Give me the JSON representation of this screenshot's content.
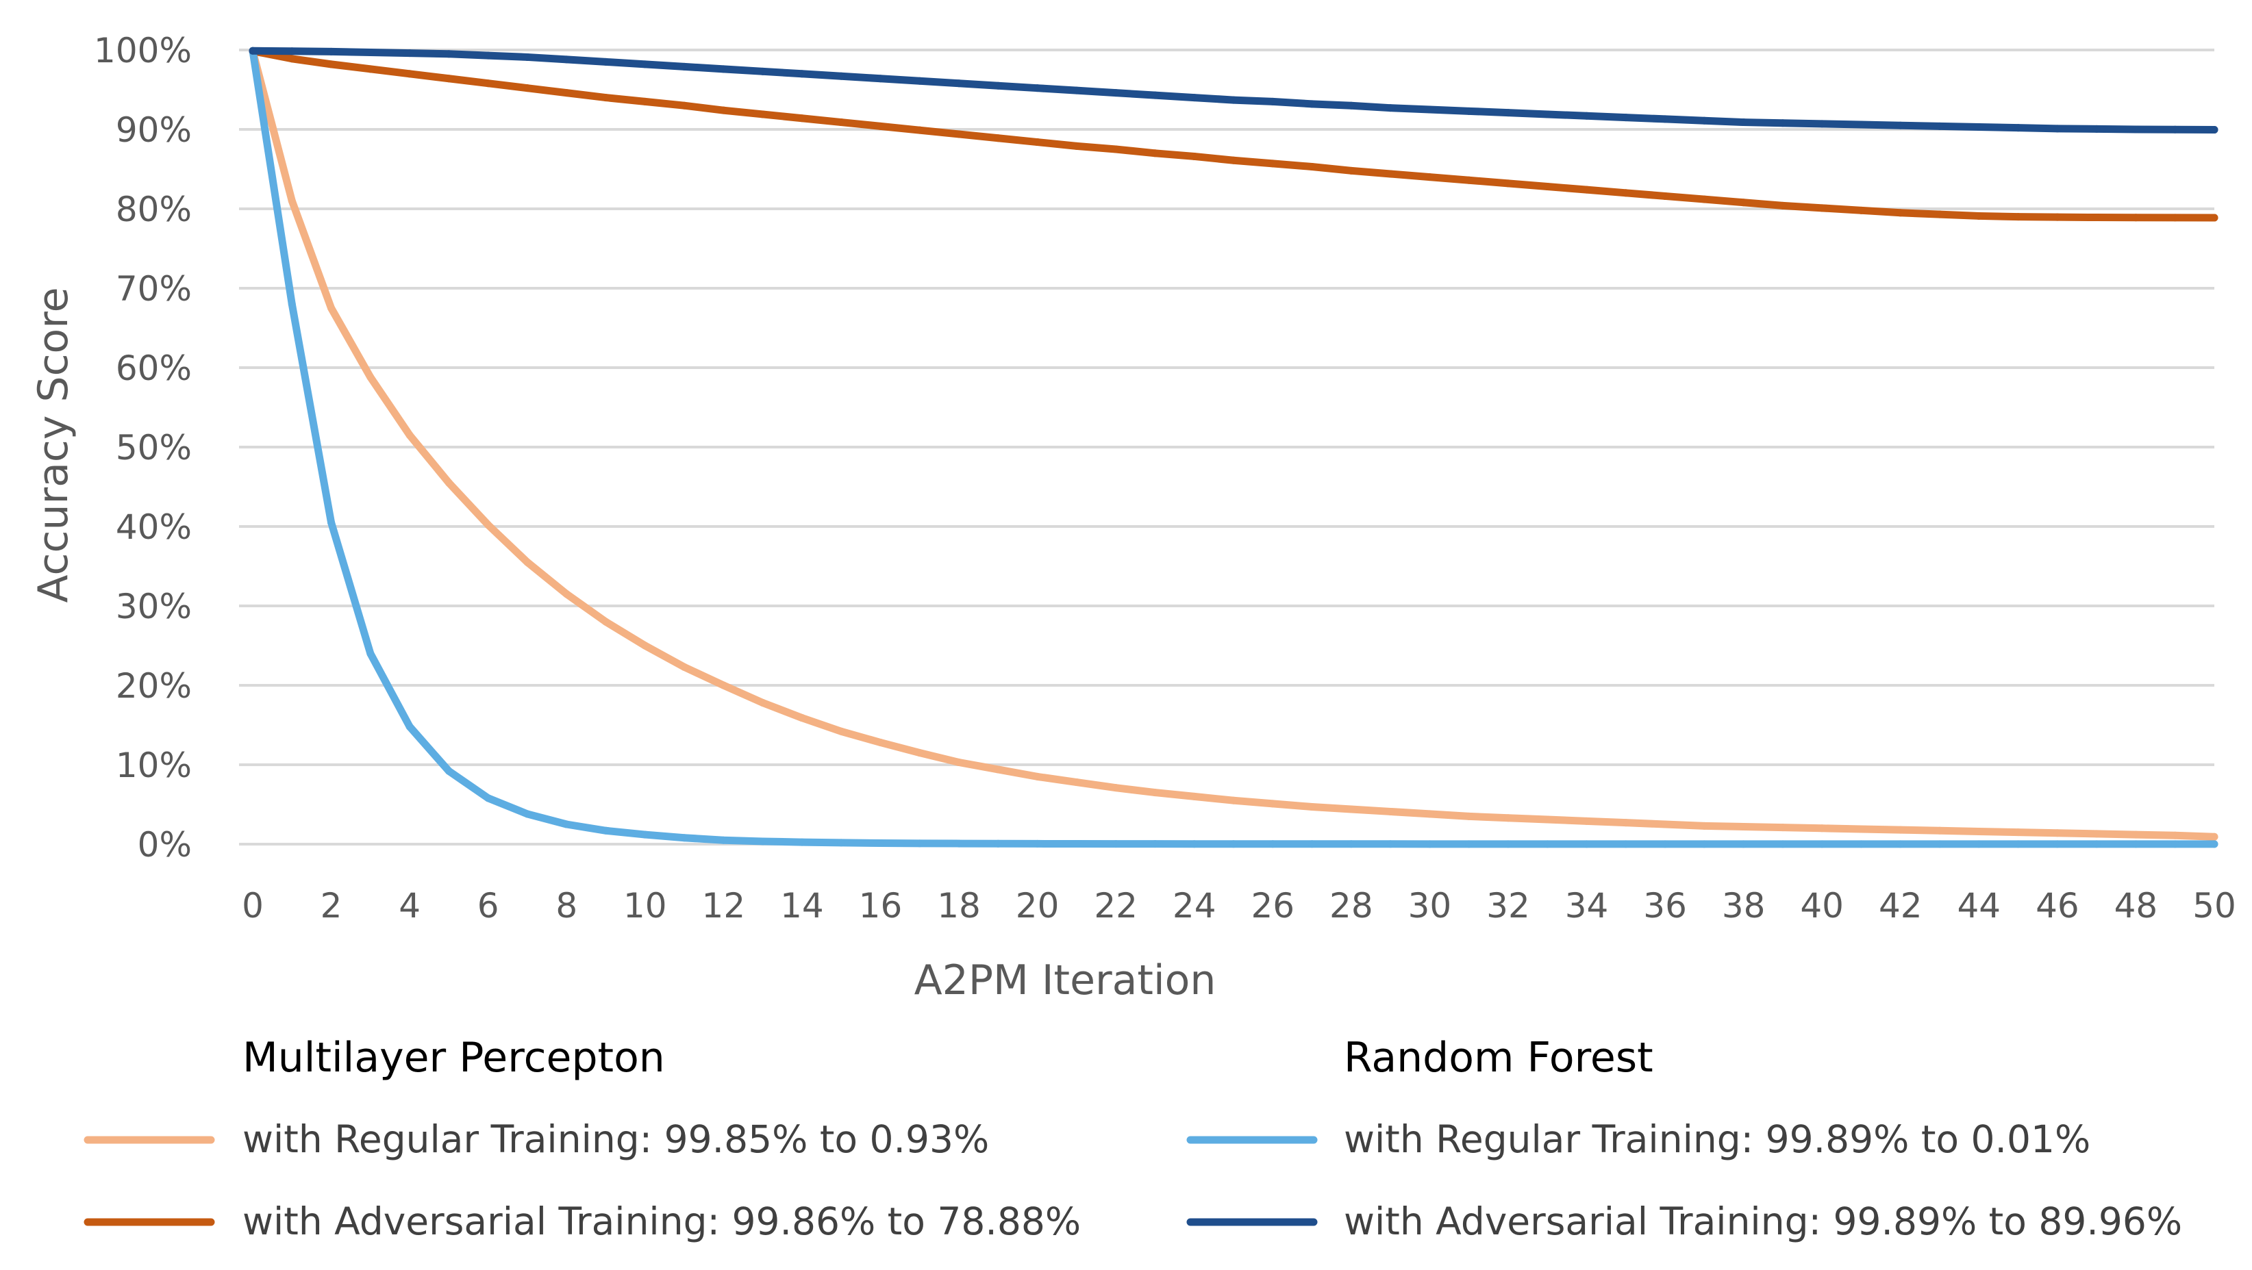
{
  "chart_data": {
    "type": "line",
    "title": "",
    "xlabel": "A2PM Iteration",
    "ylabel": "Accuracy Score",
    "xlim": [
      0,
      50
    ],
    "ylim": [
      0,
      100
    ],
    "grid": true,
    "x_ticks": [
      "0",
      "2",
      "4",
      "6",
      "8",
      "10",
      "12",
      "14",
      "16",
      "18",
      "20",
      "22",
      "24",
      "26",
      "28",
      "30",
      "32",
      "34",
      "36",
      "38",
      "40",
      "42",
      "44",
      "46",
      "48",
      "50"
    ],
    "y_ticks": [
      "0%",
      "10%",
      "20%",
      "30%",
      "40%",
      "50%",
      "60%",
      "70%",
      "80%",
      "90%",
      "100%"
    ],
    "x": [
      0,
      1,
      2,
      3,
      4,
      5,
      6,
      7,
      8,
      9,
      10,
      11,
      12,
      13,
      14,
      15,
      16,
      17,
      18,
      19,
      20,
      21,
      22,
      23,
      24,
      25,
      26,
      27,
      28,
      29,
      30,
      31,
      32,
      33,
      34,
      35,
      36,
      37,
      38,
      39,
      40,
      41,
      42,
      43,
      44,
      45,
      46,
      47,
      48,
      49,
      50
    ],
    "legend_groups": [
      {
        "title": "Multilayer Percepton",
        "entries": [
          {
            "series": 0,
            "label": "with Regular Training:  99.85% to 0.93%"
          },
          {
            "series": 1,
            "label": "with Adversarial Training:  99.86% to 78.88%"
          }
        ]
      },
      {
        "title": "Random Forest",
        "entries": [
          {
            "series": 2,
            "label": "with Regular Training:  99.89% to 0.01%"
          },
          {
            "series": 3,
            "label": "with Adversarial Training:  99.89% to 89.96%"
          }
        ]
      }
    ],
    "series": [
      {
        "name": "Multilayer Percepton with Regular Training",
        "color": "#F4B183",
        "values": [
          99.85,
          81,
          67.5,
          58.8,
          51.5,
          45.5,
          40.2,
          35.5,
          31.5,
          28,
          25,
          22.3,
          20,
          17.8,
          15.9,
          14.2,
          12.8,
          11.5,
          10.3,
          9.4,
          8.5,
          7.8,
          7.1,
          6.5,
          6,
          5.5,
          5.1,
          4.7,
          4.4,
          4.1,
          3.8,
          3.5,
          3.3,
          3.1,
          2.9,
          2.7,
          2.5,
          2.3,
          2.2,
          2.1,
          2,
          1.9,
          1.8,
          1.7,
          1.6,
          1.5,
          1.4,
          1.3,
          1.2,
          1.1,
          0.93
        ]
      },
      {
        "name": "Multilayer Percepton with Adversarial Training",
        "color": "#C55A11",
        "values": [
          99.86,
          98.9,
          98.2,
          97.6,
          97,
          96.4,
          95.8,
          95.2,
          94.6,
          94,
          93.5,
          93,
          92.4,
          91.9,
          91.4,
          90.9,
          90.4,
          89.9,
          89.4,
          88.9,
          88.4,
          87.9,
          87.5,
          87,
          86.6,
          86.1,
          85.7,
          85.3,
          84.8,
          84.4,
          84,
          83.6,
          83.2,
          82.8,
          82.4,
          82,
          81.6,
          81.2,
          80.8,
          80.4,
          80.1,
          79.8,
          79.5,
          79.3,
          79.1,
          79,
          78.95,
          78.92,
          78.9,
          78.89,
          78.88
        ]
      },
      {
        "name": "Random Forest with Regular Training",
        "color": "#5DADE2",
        "values": [
          99.89,
          68,
          40.5,
          24,
          14.8,
          9.2,
          5.8,
          3.8,
          2.5,
          1.7,
          1.2,
          0.8,
          0.5,
          0.35,
          0.25,
          0.18,
          0.13,
          0.1,
          0.08,
          0.06,
          0.05,
          0.04,
          0.03,
          0.03,
          0.02,
          0.02,
          0.02,
          0.02,
          0.02,
          0.02,
          0.01,
          0.01,
          0.01,
          0.01,
          0.01,
          0.01,
          0.01,
          0.01,
          0.01,
          0.01,
          0.01,
          0.01,
          0.01,
          0.01,
          0.01,
          0.01,
          0.01,
          0.01,
          0.01,
          0.01,
          0.01
        ]
      },
      {
        "name": "Random Forest with Adversarial Training",
        "color": "#1F4E8C",
        "values": [
          99.89,
          99.85,
          99.8,
          99.7,
          99.6,
          99.5,
          99.3,
          99.1,
          98.8,
          98.5,
          98.2,
          97.9,
          97.6,
          97.3,
          97,
          96.7,
          96.4,
          96.1,
          95.8,
          95.5,
          95.2,
          94.9,
          94.6,
          94.3,
          94,
          93.7,
          93.5,
          93.2,
          93,
          92.7,
          92.5,
          92.3,
          92.1,
          91.9,
          91.7,
          91.5,
          91.3,
          91.1,
          90.9,
          90.8,
          90.7,
          90.6,
          90.5,
          90.4,
          90.3,
          90.2,
          90.1,
          90.05,
          90,
          89.98,
          89.96
        ]
      }
    ]
  }
}
